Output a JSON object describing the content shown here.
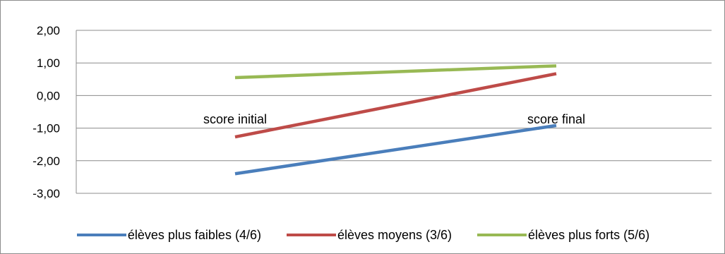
{
  "chart_data": {
    "type": "line",
    "categories": [
      "score initial",
      "score final"
    ],
    "series": [
      {
        "name": "élèves plus faibles (4/6)",
        "values": [
          -2.4,
          -0.92
        ],
        "color": "#4a7ebb"
      },
      {
        "name": "élèves moyens (3/6)",
        "values": [
          -1.27,
          0.67
        ],
        "color": "#be4b48"
      },
      {
        "name": "élèves plus forts (5/6)",
        "values": [
          0.55,
          0.91
        ],
        "color": "#98b954"
      }
    ],
    "ylim": [
      -3,
      2
    ],
    "yticks": [
      "2,00",
      "1,00",
      "0,00",
      "-1,00",
      "-2,00",
      "-3,00"
    ],
    "ytick_values": [
      2,
      1,
      0,
      -1,
      -2,
      -3
    ],
    "grid": true,
    "legend_position": "bottom",
    "title": "",
    "xlabel": "",
    "ylabel": ""
  }
}
